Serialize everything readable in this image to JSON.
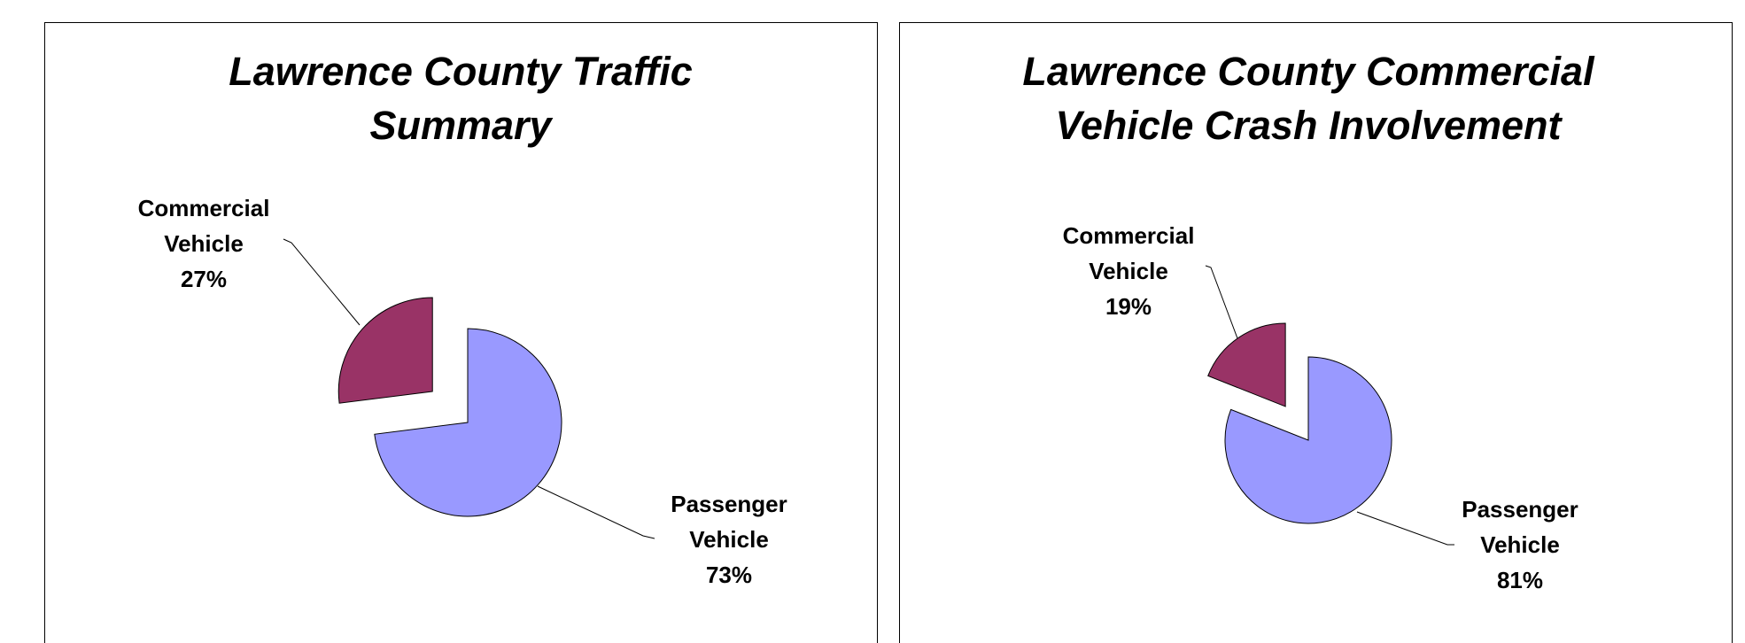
{
  "chart_data": [
    {
      "type": "pie",
      "title": "Lawrence County Traffic Summary",
      "categories": [
        "Passenger Vehicle",
        "Commercial Vehicle"
      ],
      "values": [
        73,
        27
      ],
      "value_labels": [
        "73%",
        "27%"
      ],
      "colors": [
        "#9999ff",
        "#993366"
      ]
    },
    {
      "type": "pie",
      "title": "Lawrence County Commercial Vehicle Crash Involvement",
      "categories": [
        "Passenger Vehicle",
        "Commercial Vehicle"
      ],
      "values": [
        81,
        19
      ],
      "value_labels": [
        "81%",
        "19%"
      ],
      "colors": [
        "#9999ff",
        "#993366"
      ]
    }
  ]
}
